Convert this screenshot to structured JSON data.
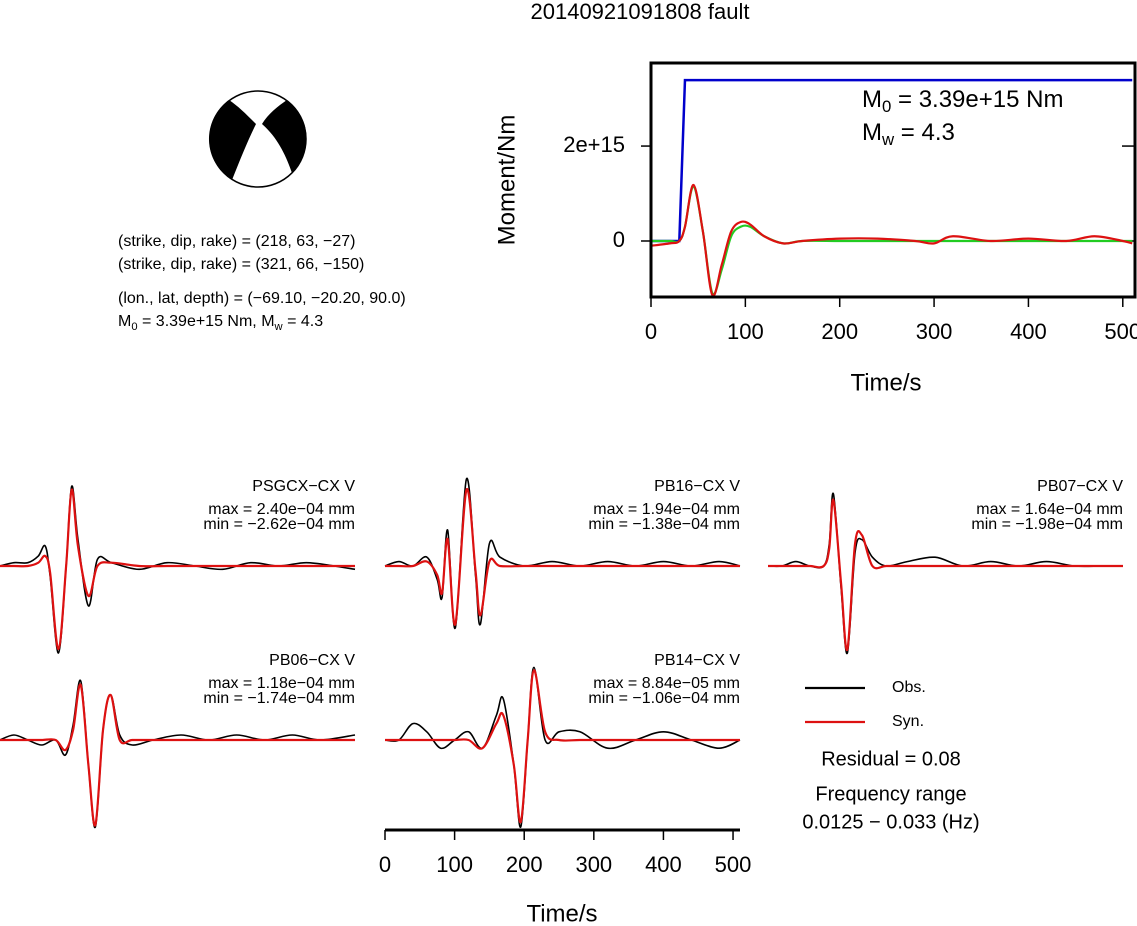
{
  "title": "20140921091808 fault",
  "focal_mechanism": {
    "lines": [
      "(strike, dip, rake) = (218, 63, −27)",
      "(strike, dip, rake) = (321, 66, −150)",
      "(lon., lat, depth) = (−69.10, −20.20, 90.0)"
    ],
    "moment_line": [
      "M",
      "0",
      " = 3.39e+15 Nm, M",
      "w",
      " = 4.3"
    ]
  },
  "chart_data": [
    {
      "type": "line",
      "xlabel": "Time/s",
      "ylabel": "Moment/Nm",
      "xlim": [
        0,
        514
      ],
      "ylim": [
        -1180000000000000.0,
        3750000000000000.0
      ],
      "xticks": [
        0,
        100,
        200,
        300,
        400,
        500
      ],
      "yticks": [
        0,
        {
          "value": 2000000000000000.0,
          "label": "2e+15"
        }
      ],
      "annotation_lines": [
        [
          "M",
          "0",
          " = 3.39e+15 Nm"
        ],
        [
          "M",
          "w",
          " = 4.3"
        ]
      ],
      "series": [
        {
          "color": "#0000cc",
          "x": [
            0,
            30,
            36,
            510
          ],
          "values": [
            0,
            0,
            3390000000000000.0,
            3390000000000000.0
          ]
        },
        {
          "color": "#22cc22",
          "x": [
            0,
            20,
            30,
            36,
            45,
            55,
            65,
            75,
            85,
            95,
            105,
            120,
            140,
            160,
            200,
            240,
            280,
            300,
            320,
            360,
            400,
            440,
            470,
            500,
            510
          ],
          "values": [
            0,
            0,
            0,
            300000000000000.0,
            1150000000000000.0,
            200000000000000.0,
            -1100000000000000.0,
            -600000000000000.0,
            100000000000000.0,
            300000000000000.0,
            300000000000000.0,
            100000000000000.0,
            -50000000000000.0,
            0,
            0,
            0,
            0,
            0,
            0,
            0,
            0,
            0,
            0,
            0,
            0
          ]
        },
        {
          "color": "#dd1111",
          "x": [
            0,
            20,
            30,
            36,
            45,
            55,
            65,
            75,
            85,
            95,
            105,
            120,
            140,
            160,
            200,
            240,
            280,
            300,
            320,
            360,
            400,
            440,
            470,
            500,
            510
          ],
          "values": [
            -100000000000000.0,
            -50000000000000.0,
            0,
            300000000000000.0,
            1180000000000000.0,
            200000000000000.0,
            -1140000000000000.0,
            -500000000000000.0,
            200000000000000.0,
            400000000000000.0,
            350000000000000.0,
            100000000000000.0,
            -50000000000000.0,
            0,
            50000000000000.0,
            50000000000000.0,
            0,
            -50000000000000.0,
            100000000000000.0,
            0,
            50000000000000.0,
            0,
            100000000000000.0,
            0,
            -50000000000000.0
          ]
        }
      ]
    },
    {
      "type": "waveforms",
      "xlabel": "Time/s",
      "xlim": [
        0,
        510
      ],
      "xticks": [
        0,
        100,
        200,
        300,
        400,
        500
      ],
      "legend": [
        {
          "name": "Obs.",
          "color": "#000000"
        },
        {
          "name": "Syn.",
          "color": "#dd1111"
        }
      ],
      "notes": [
        "Residual = 0.08",
        "Frequency range",
        "0.0125 − 0.033 (Hz)"
      ],
      "panels": [
        {
          "title": "PSGCX−CX V",
          "max_label": "max = 2.40e−04 mm",
          "min_label": "min = −2.62e−04 mm",
          "x": [
            0,
            20,
            40,
            55,
            65,
            72,
            84,
            95,
            103,
            112,
            127,
            140,
            160,
            200,
            240,
            280,
            320,
            360,
            400,
            440,
            480,
            510
          ],
          "series": [
            {
              "values": [
                0,
                1e-05,
                1e-05,
                3e-05,
                6e-05,
                -3e-05,
                -0.000262,
                0,
                0.00024,
                8e-05,
                -0.00012,
                2e-05,
                1e-05,
                -1e-05,
                1e-05,
                0,
                -1e-05,
                1e-05,
                0,
                1e-05,
                0,
                -1e-05
              ]
            },
            {
              "values": [
                0,
                0,
                0,
                1e-05,
                3e-05,
                -2e-05,
                -0.00025,
                0,
                0.00023,
                6e-05,
                -9e-05,
                0,
                1e-05,
                0,
                0,
                0,
                0,
                0,
                0,
                0,
                0,
                0
              ]
            }
          ]
        },
        {
          "title": "PB16−CX V",
          "max_label": "max = 1.94e−04 mm",
          "min_label": "min = −1.38e−04 mm",
          "x": [
            0,
            20,
            40,
            60,
            75,
            82,
            90,
            101,
            117,
            130,
            137,
            150,
            165,
            200,
            240,
            280,
            320,
            360,
            400,
            440,
            480,
            510
          ],
          "series": [
            {
              "values": [
                0,
                1e-05,
                0,
                2e-05,
                -3e-05,
                -7e-05,
                8e-05,
                -0.000138,
                0.000194,
                -2e-05,
                -0.00013,
                5e-05,
                2e-05,
                0,
                1e-05,
                0,
                1e-05,
                0,
                1e-05,
                0,
                1e-05,
                0
              ]
            },
            {
              "values": [
                0,
                0,
                0,
                1e-05,
                -2e-05,
                -6e-05,
                6e-05,
                -0.00013,
                0.00017,
                -1e-05,
                -0.00011,
                1e-05,
                0,
                0,
                0,
                0,
                0,
                0,
                0,
                0,
                0,
                0
              ]
            }
          ]
        },
        {
          "title": "PB07−CX V",
          "max_label": "max = 1.64e−04 mm",
          "min_label": "min = −1.98e−04 mm",
          "x": [
            0,
            20,
            40,
            60,
            80,
            88,
            94,
            105,
            114,
            125,
            135,
            150,
            170,
            200,
            240,
            280,
            320,
            360,
            400,
            440,
            480,
            510
          ],
          "series": [
            {
              "values": [
                0,
                0,
                1e-05,
                0,
                0,
                5e-05,
                0.000164,
                -5e-05,
                -0.000198,
                3e-05,
                6e-05,
                2e-05,
                0,
                1e-05,
                2e-05,
                0,
                1e-05,
                0,
                1e-05,
                0,
                0,
                0
              ]
            },
            {
              "values": [
                0,
                0,
                0,
                0,
                0,
                4e-05,
                0.00015,
                -4e-05,
                -0.00019,
                5e-05,
                7e-05,
                0,
                0,
                0,
                0,
                0,
                0,
                0,
                0,
                0,
                0,
                0
              ]
            }
          ]
        },
        {
          "title": "PB06−CX V",
          "max_label": "max = 1.18e−04 mm",
          "min_label": "min = −1.74e−04 mm",
          "x": [
            0,
            20,
            40,
            60,
            80,
            94,
            105,
            116,
            127,
            137,
            148,
            159,
            172,
            190,
            220,
            260,
            300,
            340,
            380,
            420,
            460,
            510
          ],
          "series": [
            {
              "values": [
                0,
                1e-05,
                0,
                -1e-05,
                0,
                -3e-05,
                3e-05,
                0.000118,
                -5e-05,
                -0.000174,
                2e-05,
                9e-05,
                1e-05,
                -1e-05,
                0,
                1e-05,
                0,
                1e-05,
                0,
                1e-05,
                0,
                1e-05
              ]
            },
            {
              "values": [
                0,
                0,
                0,
                0,
                0,
                -2e-05,
                2e-05,
                0.00011,
                -5e-05,
                -0.00017,
                2e-05,
                9e-05,
                0,
                0,
                0,
                0,
                0,
                0,
                0,
                0,
                0,
                0
              ]
            }
          ]
        },
        {
          "title": "PB14−CX V",
          "max_label": "max = 8.84e−05 mm",
          "min_label": "min = −1.06e−04 mm",
          "x": [
            0,
            20,
            40,
            60,
            80,
            100,
            120,
            140,
            160,
            170,
            185,
            195,
            205,
            214,
            230,
            250,
            280,
            320,
            360,
            400,
            440,
            480,
            510
          ],
          "series": [
            {
              "values": [
                0,
                0,
                2e-05,
                1e-05,
                -1e-05,
                0,
                1e-05,
                -1e-05,
                3e-05,
                5e-05,
                -3e-05,
                -0.000106,
                0,
                8.84e-05,
                0,
                1e-05,
                1e-05,
                -1e-05,
                0,
                1e-05,
                0,
                -1e-05,
                0
              ]
            },
            {
              "values": [
                0,
                0,
                0,
                0,
                0,
                0,
                0,
                -1e-05,
                2e-05,
                3e-05,
                -3e-05,
                -0.0001,
                0,
                8.5e-05,
                1e-05,
                0,
                0,
                0,
                0,
                0,
                0,
                0,
                0
              ]
            }
          ]
        }
      ]
    }
  ]
}
